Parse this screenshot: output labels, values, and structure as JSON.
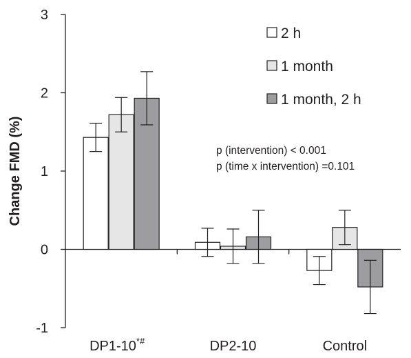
{
  "chart_data": {
    "type": "bar",
    "ylabel": "Change FMD (%)",
    "xlabel": "",
    "ylim": [
      -1,
      3
    ],
    "yticks": [
      "3",
      "2",
      "1",
      "0",
      "-1"
    ],
    "ytick_values": [
      3,
      2,
      1,
      0,
      -1
    ],
    "grid": false,
    "legend_position": "top-right",
    "categories": [
      {
        "name": "DP1-10",
        "superscript": "*#"
      },
      {
        "name": "DP2-10",
        "superscript": ""
      },
      {
        "name": "Control",
        "superscript": ""
      }
    ],
    "series": [
      {
        "name": "2 h",
        "color": "#ffffff",
        "values": [
          1.43,
          0.09,
          -0.27
        ],
        "errors": [
          0.18,
          0.18,
          0.18
        ]
      },
      {
        "name": "1 month",
        "color": "#e6e6e6",
        "values": [
          1.72,
          0.04,
          0.28
        ],
        "errors": [
          0.22,
          0.22,
          0.22
        ]
      },
      {
        "name": "1 month, 2 h",
        "color": "#9d9d9f",
        "values": [
          1.93,
          0.16,
          -0.48
        ],
        "errors": [
          0.34,
          0.34,
          0.34
        ]
      }
    ],
    "annotations": [
      "p (intervention) < 0.001",
      "p (time x intervention) =0.101"
    ]
  }
}
